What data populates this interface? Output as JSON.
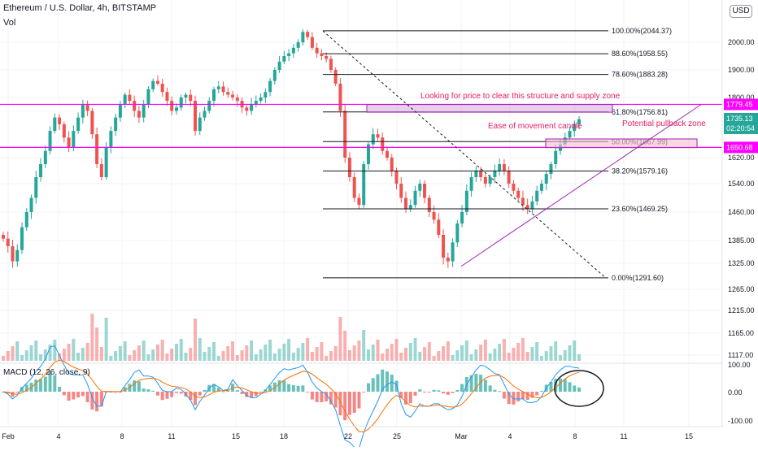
{
  "header": {
    "title": "Ethereum / U.S. Dollar, 4h, BITSTAMP",
    "volume_label": "Vol",
    "macd_label": "MACD (12, 26, close, 9)",
    "currency_button": "USD"
  },
  "colors": {
    "up": "#26a69a",
    "down": "#ef5350",
    "fib_line": "#131722",
    "magenta": "#ff00ff",
    "annotation_text": "#e91e63",
    "trendline": "#9c27b0",
    "macd_line": "#2196f3",
    "signal_line": "#ff6d00",
    "zone_fill": "#ce93d8"
  },
  "chart_data": {
    "type": "candlestick",
    "price_axis": {
      "ticks": [
        "2000.00",
        "1900.00",
        "1800.00",
        "1620.00",
        "1540.00",
        "1460.00",
        "1385.00",
        "1325.00",
        "1265.00",
        "1215.00",
        "1165.00",
        "1117.00"
      ],
      "labels": {
        "current_price": "1735.13",
        "countdown": "02:20:54",
        "upper_level": "1779.45",
        "lower_level": "1650.68"
      }
    },
    "macd_axis": {
      "ticks": [
        "100.00",
        "0.00",
        "-100.00"
      ]
    },
    "time_axis": {
      "ticks": [
        "Feb",
        "4",
        "8",
        "11",
        "15",
        "18",
        "22",
        "25",
        "Mar",
        "4",
        "8",
        "11",
        "15"
      ]
    },
    "fibonacci": [
      {
        "label": "100.00%(2044.37)",
        "price": 2044.37
      },
      {
        "label": "88.60%(1958.55)",
        "price": 1958.55
      },
      {
        "label": "78.60%(1883.28)",
        "price": 1883.28
      },
      {
        "label": "61.80%(1756.81)",
        "price": 1756.81
      },
      {
        "label": "50.00%(1667.99)",
        "price": 1667.99
      },
      {
        "label": "38.20%(1579.16)",
        "price": 1579.16
      },
      {
        "label": "23.60%(1469.25)",
        "price": 1469.25
      },
      {
        "label": "0.00%(1291.60)",
        "price": 1291.6
      }
    ],
    "horizontal_levels": [
      1779.45,
      1650.68
    ],
    "annotations": {
      "supply": "Looking for price to clear this structure and supply zone",
      "ease": "Ease of movement candle",
      "pullback": "Potential pullback zone"
    },
    "price_path": [
      1390,
      1370,
      1330,
      1360,
      1420,
      1460,
      1500,
      1560,
      1600,
      1640,
      1700,
      1740,
      1720,
      1680,
      1650,
      1700,
      1740,
      1780,
      1760,
      1690,
      1600,
      1560,
      1650,
      1700,
      1740,
      1780,
      1810,
      1790,
      1760,
      1740,
      1780,
      1830,
      1860,
      1850,
      1820,
      1790,
      1760,
      1770,
      1800,
      1810,
      1790,
      1700,
      1740,
      1760,
      1790,
      1830,
      1840,
      1820,
      1810,
      1800,
      1790,
      1770,
      1760,
      1780,
      1790,
      1800,
      1820,
      1860,
      1900,
      1930,
      1950,
      1960,
      1980,
      2000,
      2040,
      2020,
      1980,
      1960,
      1950,
      1940,
      1900,
      1850,
      1760,
      1620,
      1560,
      1500,
      1480,
      1600,
      1660,
      1690,
      1680,
      1640,
      1620,
      1580,
      1540,
      1500,
      1470,
      1480,
      1520,
      1540,
      1500,
      1460,
      1440,
      1400,
      1340,
      1330,
      1380,
      1430,
      1460,
      1520,
      1560,
      1580,
      1560,
      1540,
      1560,
      1580,
      1600,
      1580,
      1540,
      1520,
      1500,
      1480,
      1470,
      1490,
      1520,
      1540,
      1570,
      1600,
      1640,
      1660,
      1680,
      1700,
      1720,
      1735
    ]
  }
}
